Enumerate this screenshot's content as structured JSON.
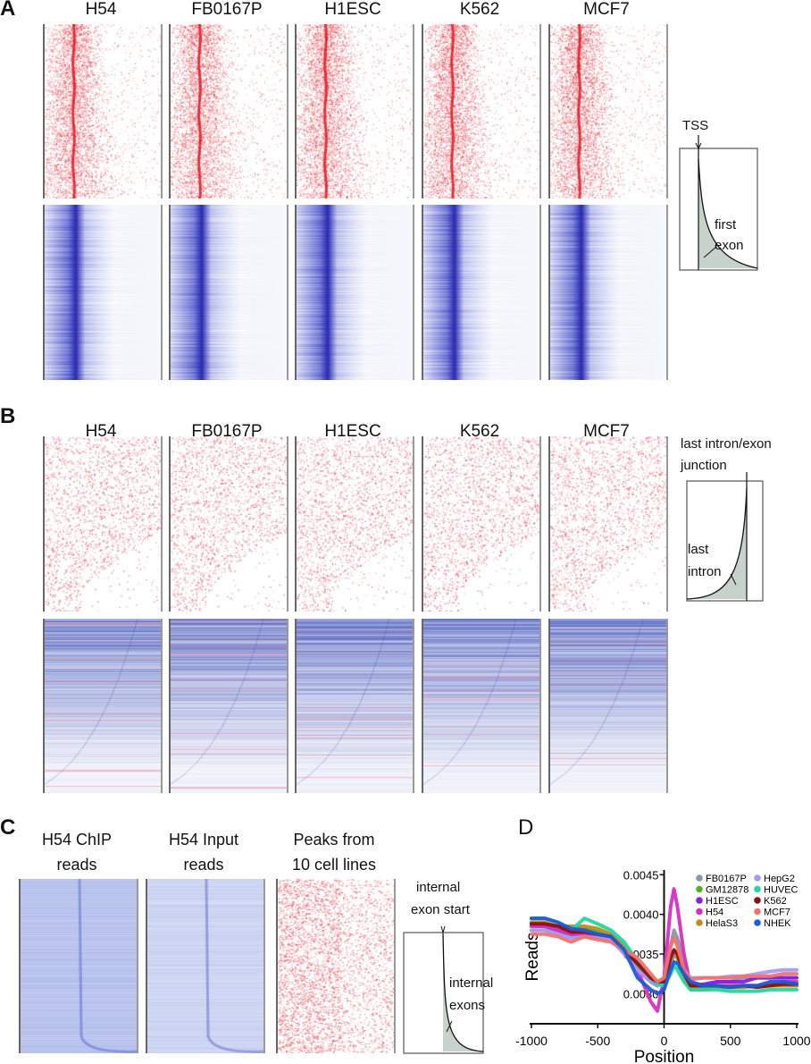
{
  "panels": {
    "A": {
      "label": "A",
      "columns": [
        "H54",
        "FB0167P",
        "H1ESC",
        "K562",
        "MCF7"
      ],
      "inset": {
        "top_label": "TSS",
        "region_label_1": "first",
        "region_label_2": "exon"
      }
    },
    "B": {
      "label": "B",
      "columns": [
        "H54",
        "FB0167P",
        "H1ESC",
        "K562",
        "MCF7"
      ],
      "inset": {
        "top_label_1": "last intron/exon",
        "top_label_2": "junction",
        "region_label_1": "last",
        "region_label_2": "intron"
      }
    },
    "C": {
      "label": "C",
      "columns": [
        {
          "line1": "H54 ChIP",
          "line2": "reads"
        },
        {
          "line1": "H54 Input",
          "line2": "reads"
        },
        {
          "line1": "Peaks from",
          "line2": "10 cell lines"
        }
      ],
      "inset": {
        "top_label_1": "internal",
        "top_label_2": "exon start",
        "region_label_1": "internal",
        "region_label_2": "exons"
      }
    },
    "D": {
      "label": "D"
    }
  },
  "colors": {
    "red_heat": "#e8202a",
    "blue_heat": "#2a2ab8",
    "inset_fill": "#c8d2cc"
  },
  "chart_data": {
    "type": "line",
    "xlabel": "Position",
    "ylabel": "Reads",
    "xlim": [
      -1000,
      1000
    ],
    "ylim": [
      0.00262,
      0.00456
    ],
    "xticks": [
      "-1000",
      "-500",
      "0",
      "500",
      "1000"
    ],
    "xtick_values": [
      -1000,
      -500,
      0,
      500,
      1000
    ],
    "yticks": [
      "0.0030",
      "0.0035",
      "0.0040",
      "0.0045"
    ],
    "ytick_values": [
      0.003,
      0.0035,
      0.004,
      0.0045
    ],
    "legend_position": "top-right",
    "x": [
      -1000,
      -900,
      -800,
      -700,
      -600,
      -500,
      -400,
      -300,
      -200,
      -100,
      -50,
      0,
      50,
      75,
      100,
      150,
      200,
      300,
      400,
      500,
      600,
      700,
      800,
      900,
      1000
    ],
    "series": [
      {
        "name": "FB0167P",
        "color": "#8f93ac",
        "values": [
          0.0038,
          0.0038,
          0.00375,
          0.00372,
          0.00372,
          0.0037,
          0.0037,
          0.0035,
          0.00335,
          0.00315,
          0.0031,
          0.0032,
          0.0036,
          0.0038,
          0.0037,
          0.0034,
          0.00315,
          0.0031,
          0.00315,
          0.00315,
          0.0032,
          0.0032,
          0.0032,
          0.0032,
          0.0032
        ]
      },
      {
        "name": "GM12878",
        "color": "#4fb320",
        "values": [
          0.0039,
          0.00385,
          0.0038,
          0.0038,
          0.00382,
          0.00378,
          0.0037,
          0.00355,
          0.00335,
          0.00315,
          0.0031,
          0.00315,
          0.00335,
          0.0035,
          0.00345,
          0.0032,
          0.00305,
          0.00305,
          0.00308,
          0.0031,
          0.0031,
          0.0031,
          0.0031,
          0.00312,
          0.0031
        ]
      },
      {
        "name": "H1ESC",
        "color": "#8a1fe0",
        "values": [
          0.00385,
          0.00385,
          0.0038,
          0.00375,
          0.00375,
          0.00372,
          0.0037,
          0.0035,
          0.0033,
          0.00315,
          0.0031,
          0.00315,
          0.00345,
          0.00355,
          0.0035,
          0.00325,
          0.0031,
          0.00312,
          0.00315,
          0.00315,
          0.00315,
          0.0032,
          0.0032,
          0.0032,
          0.0032
        ]
      },
      {
        "name": "H54",
        "color": "#d630c0",
        "values": [
          0.00385,
          0.00385,
          0.0038,
          0.00375,
          0.00375,
          0.0037,
          0.0037,
          0.0035,
          0.0033,
          0.0029,
          0.00278,
          0.0032,
          0.0041,
          0.00432,
          0.0041,
          0.0035,
          0.0031,
          0.00305,
          0.0031,
          0.0031,
          0.0031,
          0.0031,
          0.0031,
          0.00315,
          0.00315
        ]
      },
      {
        "name": "HelaS3",
        "color": "#c48a1c",
        "values": [
          0.0039,
          0.0039,
          0.00385,
          0.00385,
          0.00385,
          0.00382,
          0.00375,
          0.0036,
          0.0034,
          0.0032,
          0.00315,
          0.00315,
          0.0034,
          0.0035,
          0.00345,
          0.0032,
          0.0031,
          0.00308,
          0.00308,
          0.00308,
          0.00308,
          0.0031,
          0.0031,
          0.0031,
          0.0031
        ]
      },
      {
        "name": "HepG2",
        "color": "#a49cf0",
        "values": [
          0.0038,
          0.0038,
          0.00375,
          0.0037,
          0.00372,
          0.0037,
          0.00368,
          0.0035,
          0.0033,
          0.00315,
          0.0031,
          0.00315,
          0.0034,
          0.00355,
          0.0035,
          0.0033,
          0.0032,
          0.0032,
          0.0032,
          0.00322,
          0.00322,
          0.00325,
          0.00328,
          0.0033,
          0.0033
        ]
      },
      {
        "name": "HUVEC",
        "color": "#20d8a0",
        "values": [
          0.00395,
          0.00395,
          0.0039,
          0.0038,
          0.00395,
          0.00388,
          0.0038,
          0.00365,
          0.0034,
          0.0032,
          0.00312,
          0.0031,
          0.00325,
          0.00335,
          0.0033,
          0.00315,
          0.00305,
          0.00305,
          0.00305,
          0.00303,
          0.00303,
          0.00303,
          0.00305,
          0.00305,
          0.00305
        ]
      },
      {
        "name": "K562",
        "color": "#8b1010",
        "values": [
          0.00388,
          0.00388,
          0.00385,
          0.00378,
          0.00378,
          0.00375,
          0.00372,
          0.00355,
          0.00338,
          0.0032,
          0.00315,
          0.00315,
          0.00345,
          0.00355,
          0.0035,
          0.00325,
          0.0031,
          0.0031,
          0.0031,
          0.00308,
          0.0031,
          0.00308,
          0.0031,
          0.00312,
          0.00312
        ]
      },
      {
        "name": "MCF7",
        "color": "#f0746e",
        "values": [
          0.00375,
          0.00375,
          0.00372,
          0.00365,
          0.00372,
          0.00368,
          0.00365,
          0.00355,
          0.00345,
          0.00325,
          0.00315,
          0.0032,
          0.0036,
          0.0037,
          0.0036,
          0.0033,
          0.00318,
          0.0032,
          0.0032,
          0.0032,
          0.00322,
          0.00322,
          0.00322,
          0.00325,
          0.00325
        ]
      },
      {
        "name": "NHEK",
        "color": "#1f5ad8",
        "values": [
          0.00395,
          0.00395,
          0.0039,
          0.00382,
          0.0038,
          0.00375,
          0.00372,
          0.00355,
          0.0032,
          0.00305,
          0.003,
          0.00305,
          0.0033,
          0.0034,
          0.00338,
          0.00325,
          0.00315,
          0.0031,
          0.0031,
          0.00308,
          0.0031,
          0.0031,
          0.00315,
          0.00315,
          0.00312
        ]
      }
    ]
  }
}
